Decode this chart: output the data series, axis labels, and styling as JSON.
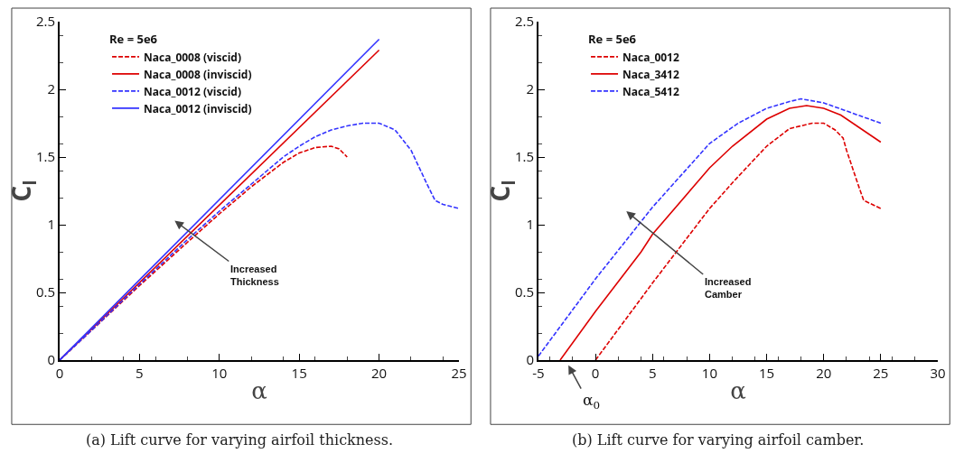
{
  "chart_data": [
    {
      "type": "line",
      "xlabel": "α",
      "ylabel": "C$_{l}$",
      "legend_title": "Re = 5e6",
      "legend": "top left",
      "grid": false,
      "marker": "none",
      "xlim": [
        0,
        25
      ],
      "xticks": [
        0,
        5,
        10,
        15,
        20,
        25
      ],
      "ylim": [
        0,
        2.5
      ],
      "yticks": [
        0,
        0.5,
        1,
        1.5,
        2,
        2.5
      ],
      "series": [
        {
          "name": "Naca_0008 (viscid)",
          "color": "#dd0000",
          "line_style": "dashed",
          "x": [
            0,
            2,
            5,
            8,
            10,
            12,
            13,
            14,
            15,
            16,
            17,
            17.5,
            18
          ],
          "values": [
            0,
            0.22,
            0.55,
            0.87,
            1.08,
            1.28,
            1.37,
            1.46,
            1.53,
            1.57,
            1.58,
            1.56,
            1.5
          ]
        },
        {
          "name": "Naca_0008 (inviscid)",
          "color": "#dd0000",
          "line_style": "solid",
          "x": [
            0,
            20
          ],
          "values": [
            0,
            2.29
          ]
        },
        {
          "name": "Naca_0012 (viscid)",
          "color": "#3333ff",
          "line_style": "dashed",
          "x": [
            0,
            2,
            5,
            8,
            10,
            12,
            13,
            14,
            15,
            16,
            17,
            18,
            19,
            20,
            21,
            22,
            23,
            23.5,
            24,
            25
          ],
          "values": [
            0,
            0.22,
            0.56,
            0.89,
            1.1,
            1.3,
            1.4,
            1.5,
            1.58,
            1.65,
            1.7,
            1.73,
            1.75,
            1.75,
            1.7,
            1.55,
            1.3,
            1.18,
            1.15,
            1.12
          ]
        },
        {
          "name": "Naca_0012 (inviscid)",
          "color": "#3333ff",
          "line_style": "solid",
          "x": [
            0,
            20
          ],
          "values": [
            0,
            2.37
          ]
        }
      ],
      "annotations": [
        "Increased\nThickness",
        "(a) Lift curve for varying airfoil thickness."
      ]
    },
    {
      "type": "line",
      "xlabel": "α",
      "ylabel": "C$_{l}$",
      "legend_title": "Re = 5e6",
      "legend": "top left",
      "grid": false,
      "marker": "none",
      "xlim": [
        -5,
        30
      ],
      "xticks": [
        -5,
        0,
        5,
        10,
        15,
        20,
        25,
        30
      ],
      "ylim": [
        0,
        2.5
      ],
      "yticks": [
        0,
        0.5,
        1,
        1.5,
        2,
        2.5
      ],
      "series": [
        {
          "name": "Naca_0012",
          "color": "#dd0000",
          "line_style": "dashed",
          "x": [
            0,
            5,
            10,
            12,
            15,
            17,
            19,
            20,
            21,
            21.7,
            22,
            23,
            23.5,
            25
          ],
          "values": [
            0,
            0.57,
            1.12,
            1.31,
            1.58,
            1.71,
            1.75,
            1.75,
            1.7,
            1.64,
            1.55,
            1.3,
            1.18,
            1.12
          ]
        },
        {
          "name": "Naca_3412",
          "color": "#dd0000",
          "line_style": "solid",
          "x": [
            -3.1,
            0,
            4,
            5,
            10,
            12,
            15,
            17,
            18.5,
            20,
            21.5,
            25
          ],
          "values": [
            0,
            0.36,
            0.8,
            0.93,
            1.42,
            1.58,
            1.78,
            1.86,
            1.88,
            1.86,
            1.81,
            1.61
          ]
        },
        {
          "name": "Naca_5412",
          "color": "#3333ff",
          "line_style": "dashed",
          "x": [
            -5,
            0,
            5,
            10,
            12.5,
            15,
            17,
            18,
            20,
            22,
            25
          ],
          "values": [
            0.03,
            0.6,
            1.13,
            1.6,
            1.75,
            1.86,
            1.91,
            1.93,
            1.9,
            1.84,
            1.75
          ]
        }
      ],
      "annotations": [
        "Increased\nCamber",
        "α$_{0}$",
        "(b) Lift curve for varying airfoil camber."
      ]
    }
  ]
}
